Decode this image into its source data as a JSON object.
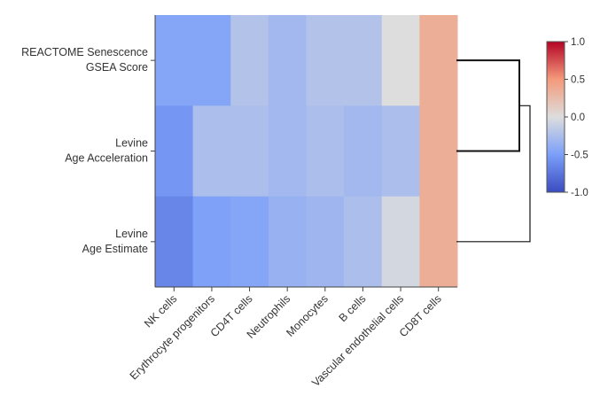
{
  "chart_data": {
    "type": "heatmap",
    "rows": [
      {
        "label_lines": [
          "REACTOME Senescence",
          "GSEA Score"
        ]
      },
      {
        "label_lines": [
          "Levine",
          "Age Acceleration"
        ]
      },
      {
        "label_lines": [
          "Levine",
          "Age Estimate"
        ]
      }
    ],
    "columns": [
      "NK cells",
      "Erythrocyte progenitors",
      "CD4T cells",
      "Neutrophils",
      "Monocytes",
      "B cells",
      "Vascular endothelial cells",
      "CD8T cells"
    ],
    "values": [
      [
        -0.45,
        -0.45,
        -0.22,
        -0.3,
        -0.22,
        -0.22,
        0.0,
        0.35
      ],
      [
        -0.55,
        -0.25,
        -0.25,
        -0.3,
        -0.25,
        -0.3,
        -0.25,
        0.35
      ],
      [
        -0.65,
        -0.48,
        -0.45,
        -0.35,
        -0.32,
        -0.25,
        -0.05,
        0.35
      ]
    ],
    "colorscale": {
      "min": -1.0,
      "max": 1.0,
      "ticks": [
        "1.0",
        "0.5",
        "0.0",
        "-0.5",
        "-1.0"
      ],
      "low_color": "#3b4cc0",
      "mid_color": "#dddddd",
      "high_color": "#b40426"
    },
    "dendrogram": "row 1 and row 2 merge first; row 3 joins at the top",
    "legend_position": "right"
  }
}
